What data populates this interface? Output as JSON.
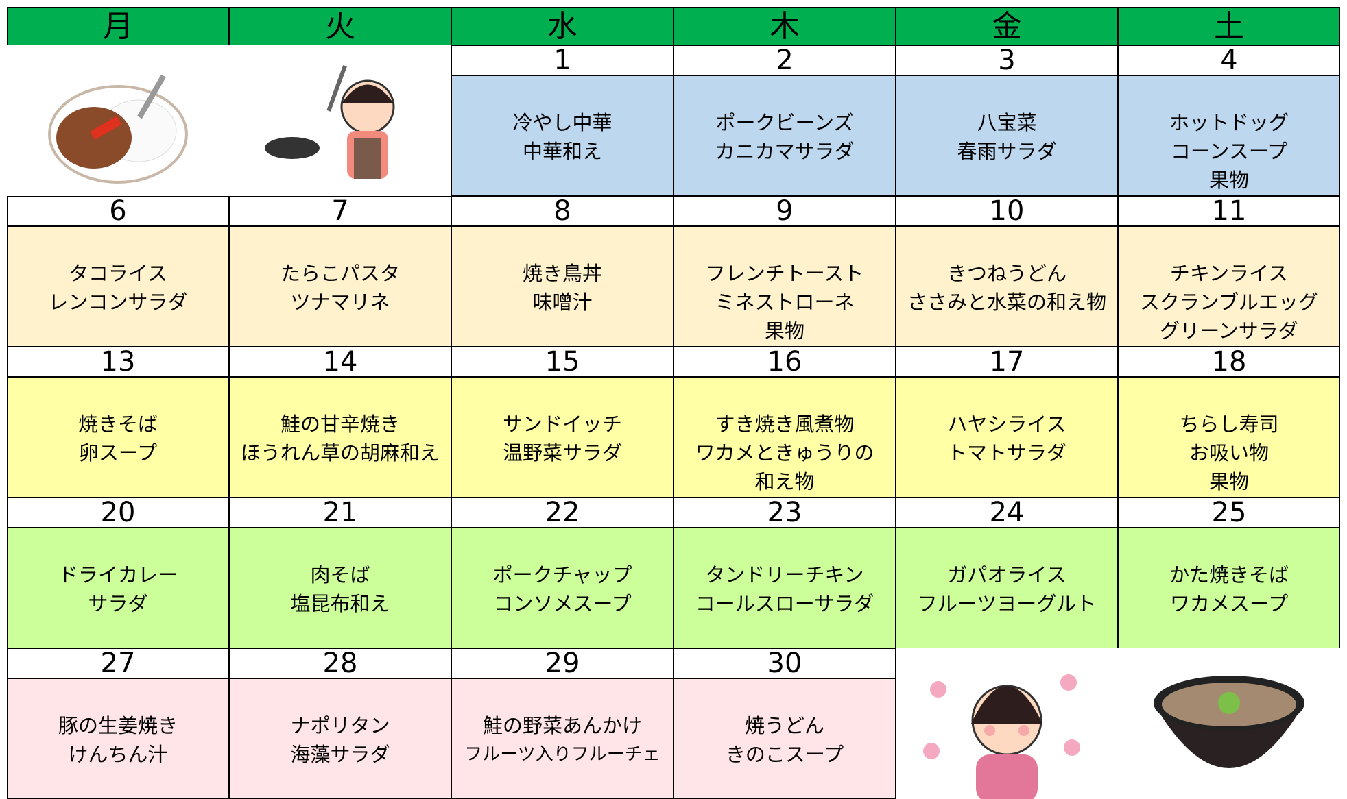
{
  "header": {
    "days": [
      "月",
      "火",
      "水",
      "木",
      "金",
      "土"
    ],
    "color": "#00b050"
  },
  "weeks": [
    {
      "color": "#bdd7ee",
      "days": [
        null,
        null,
        {
          "date": "1",
          "menu": [
            "冷やし中華",
            "中華和え"
          ]
        },
        {
          "date": "2",
          "menu": [
            "ポークビーンズ",
            "カニカマサラダ"
          ]
        },
        {
          "date": "3",
          "menu": [
            "八宝菜",
            "春雨サラダ"
          ]
        },
        {
          "date": "4",
          "menu": [
            "ホットドッグ",
            "コーンスープ",
            "果物"
          ]
        }
      ]
    },
    {
      "color": "#fff2cc",
      "days": [
        {
          "date": "6",
          "menu": [
            "タコライス",
            "レンコンサラダ"
          ]
        },
        {
          "date": "7",
          "menu": [
            "たらこパスタ",
            "ツナマリネ"
          ]
        },
        {
          "date": "8",
          "menu": [
            "焼き鳥丼",
            "味噌汁"
          ]
        },
        {
          "date": "9",
          "menu": [
            "フレンチトースト",
            "ミネストローネ",
            "果物"
          ]
        },
        {
          "date": "10",
          "menu": [
            "きつねうどん",
            "ささみと水菜の和え物"
          ]
        },
        {
          "date": "11",
          "menu": [
            "チキンライス",
            "スクランブルエッグ",
            "グリーンサラダ"
          ]
        }
      ]
    },
    {
      "color": "#ffffa6",
      "days": [
        {
          "date": "13",
          "menu": [
            "焼きそば",
            "卵スープ"
          ]
        },
        {
          "date": "14",
          "menu": [
            "鮭の甘辛焼き",
            "ほうれん草の胡麻和え"
          ]
        },
        {
          "date": "15",
          "menu": [
            "サンドイッチ",
            "温野菜サラダ"
          ]
        },
        {
          "date": "16",
          "menu": [
            "すき焼き風煮物",
            "ワカメときゅうりの",
            "和え物"
          ]
        },
        {
          "date": "17",
          "menu": [
            "ハヤシライス",
            "トマトサラダ"
          ]
        },
        {
          "date": "18",
          "menu": [
            "ちらし寿司",
            "お吸い物",
            "果物"
          ]
        }
      ]
    },
    {
      "color": "#ccff99",
      "days": [
        {
          "date": "20",
          "menu": [
            "ドライカレー",
            "サラダ"
          ]
        },
        {
          "date": "21",
          "menu": [
            "肉そば",
            "塩昆布和え"
          ]
        },
        {
          "date": "22",
          "menu": [
            "ポークチャップ",
            "コンソメスープ"
          ]
        },
        {
          "date": "23",
          "menu": [
            "タンドリーチキン",
            "コールスローサラダ"
          ]
        },
        {
          "date": "24",
          "menu": [
            "ガパオライス",
            "フルーツヨーグルト"
          ]
        },
        {
          "date": "25",
          "menu": [
            "かた焼きそば",
            "ワカメスープ"
          ]
        }
      ]
    },
    {
      "color": "#ffe4e8",
      "days": [
        {
          "date": "27",
          "menu": [
            "豚の生姜焼き",
            "けんちん汁"
          ]
        },
        {
          "date": "28",
          "menu": [
            "ナポリタン",
            "海藻サラダ"
          ]
        },
        {
          "date": "29",
          "menu": [
            "鮭の野菜あんかけ",
            "フルーツ入りフルーチェ"
          ]
        },
        {
          "date": "30",
          "menu": [
            "焼うどん",
            "きのこスープ"
          ]
        },
        null,
        null
      ]
    }
  ]
}
